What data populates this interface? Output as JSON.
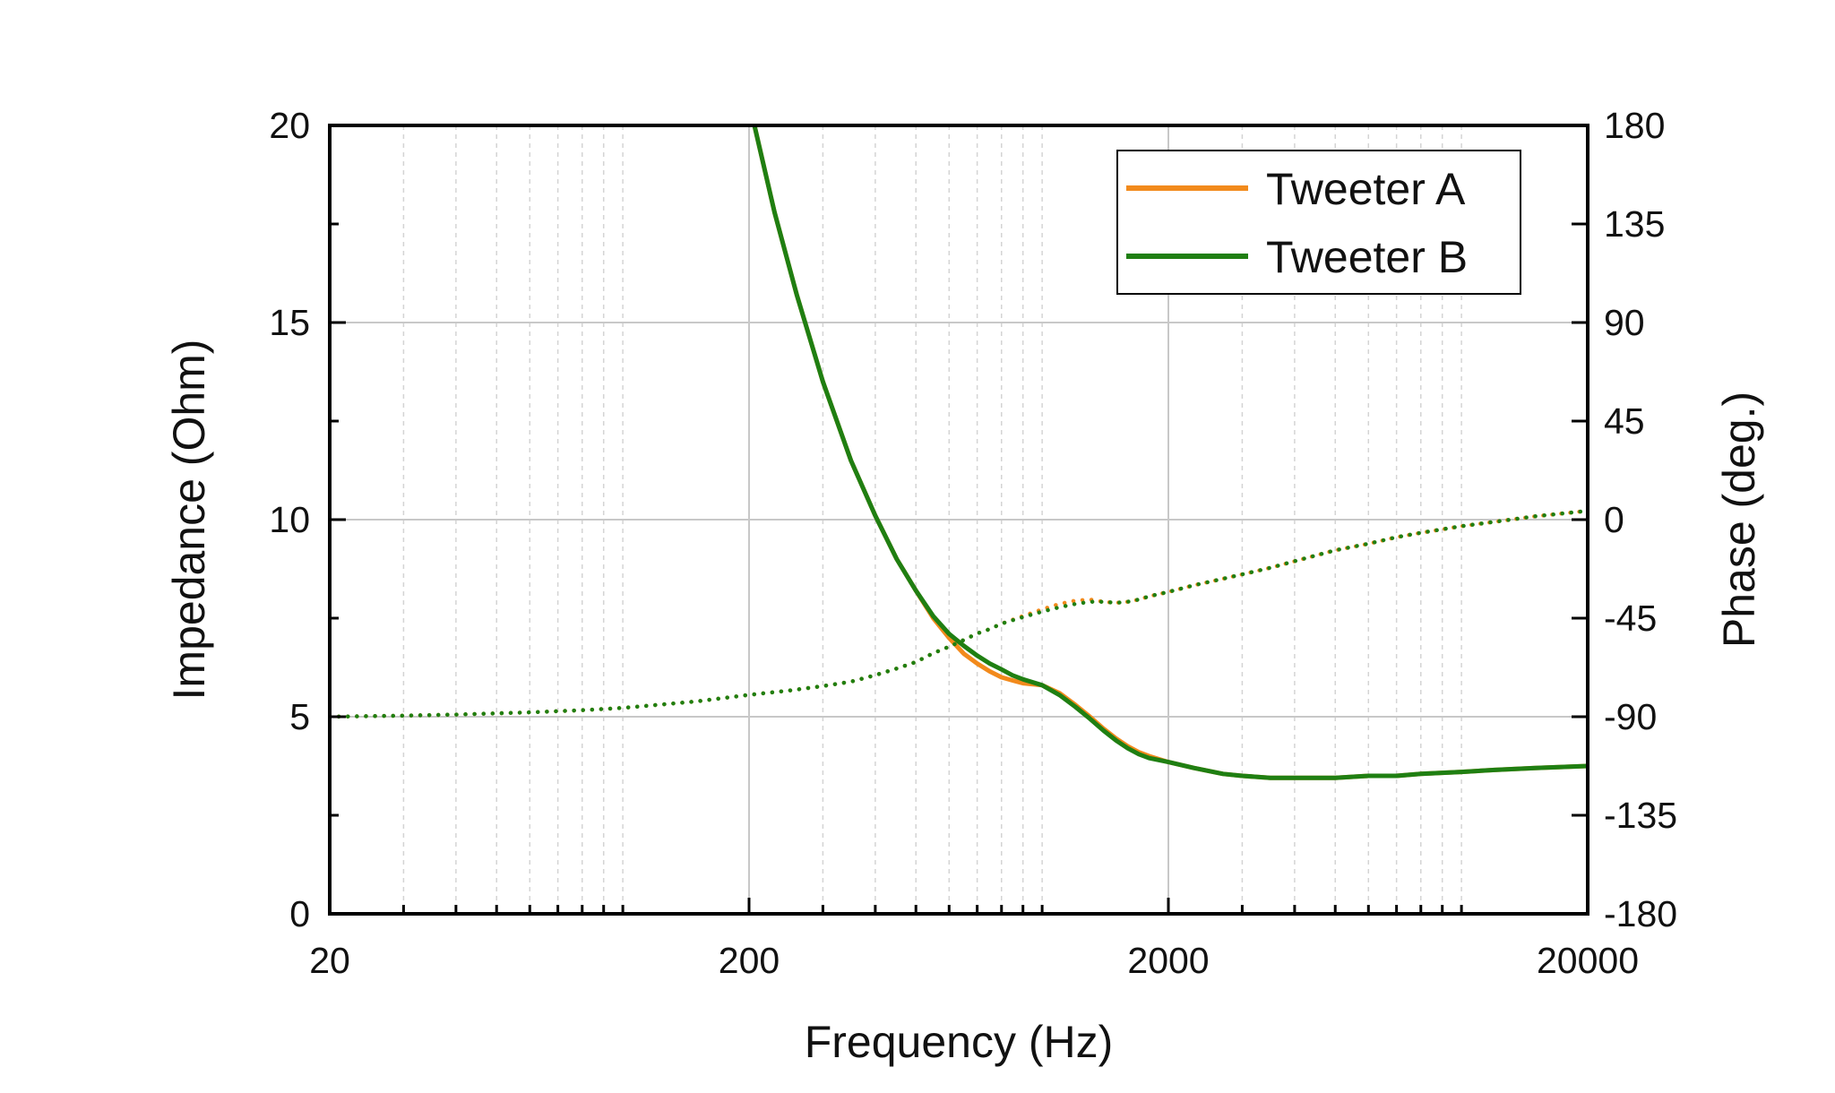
{
  "chart_data": {
    "type": "line",
    "title": "",
    "xlabel": "Frequency (Hz)",
    "ylabel_left": "Impedance (Ohm)",
    "ylabel_right": "Phase (deg.)",
    "xscale": "log",
    "xlim": [
      20,
      20000
    ],
    "ylim_left": [
      0,
      20
    ],
    "ylim_right": [
      -180,
      180
    ],
    "x_ticks": [
      "20",
      "200",
      "2000",
      "20000"
    ],
    "y_left_ticks": [
      "0",
      "5",
      "10",
      "15",
      "20"
    ],
    "y_right_ticks": [
      "-180",
      "-135",
      "-90",
      "-45",
      "0",
      "45",
      "90",
      "135",
      "180"
    ],
    "grid": true,
    "legend_position": "top-right",
    "colors": {
      "tweeter_a": "#f28a1c",
      "tweeter_b": "#1f7f12"
    },
    "series": [
      {
        "name": "Tweeter A",
        "axis": "left",
        "style": "solid",
        "x": [
          206,
          230,
          260,
          300,
          350,
          400,
          450,
          500,
          550,
          600,
          650,
          700,
          750,
          800,
          850,
          900,
          1000,
          1100,
          1200,
          1300,
          1400,
          1500,
          1600,
          1700,
          1800,
          2000,
          2300,
          2700,
          3000,
          3500,
          4000,
          5000,
          6000,
          7000,
          8000,
          10000,
          12000,
          15000,
          20000
        ],
        "values": [
          20.0,
          17.8,
          15.7,
          13.5,
          11.5,
          10.1,
          9.0,
          8.2,
          7.5,
          7.0,
          6.6,
          6.35,
          6.15,
          6.0,
          5.92,
          5.85,
          5.8,
          5.6,
          5.3,
          5.0,
          4.7,
          4.45,
          4.25,
          4.1,
          4.0,
          3.85,
          3.7,
          3.55,
          3.5,
          3.45,
          3.45,
          3.45,
          3.5,
          3.5,
          3.55,
          3.6,
          3.65,
          3.7,
          3.75
        ]
      },
      {
        "name": "Tweeter B",
        "axis": "left",
        "style": "solid",
        "x": [
          206,
          230,
          260,
          300,
          350,
          400,
          450,
          500,
          550,
          600,
          650,
          700,
          750,
          800,
          850,
          900,
          1000,
          1100,
          1200,
          1300,
          1400,
          1500,
          1600,
          1700,
          1800,
          2000,
          2300,
          2700,
          3000,
          3500,
          4000,
          5000,
          6000,
          7000,
          8000,
          10000,
          12000,
          15000,
          20000
        ],
        "values": [
          20.0,
          17.8,
          15.7,
          13.5,
          11.5,
          10.1,
          9.0,
          8.2,
          7.55,
          7.1,
          6.8,
          6.55,
          6.35,
          6.2,
          6.05,
          5.95,
          5.8,
          5.55,
          5.25,
          4.95,
          4.65,
          4.4,
          4.2,
          4.05,
          3.95,
          3.85,
          3.7,
          3.55,
          3.5,
          3.45,
          3.45,
          3.45,
          3.5,
          3.5,
          3.55,
          3.6,
          3.65,
          3.7,
          3.75
        ]
      },
      {
        "name": "Tweeter A phase",
        "axis": "right",
        "style": "dotted",
        "x": [
          20,
          30,
          40,
          60,
          80,
          100,
          150,
          200,
          250,
          300,
          350,
          400,
          450,
          500,
          550,
          600,
          650,
          700,
          750,
          800,
          900,
          1000,
          1100,
          1200,
          1300,
          1400,
          1500,
          1600,
          1700,
          1800,
          2000,
          2300,
          2700,
          3000,
          3500,
          4000,
          5000,
          6000,
          7000,
          8000,
          10000,
          12000,
          15000,
          20000
        ],
        "values": [
          -90,
          -89.5,
          -89,
          -88,
          -87,
          -86,
          -83,
          -80,
          -78,
          -76,
          -74,
          -71,
          -68,
          -65,
          -61,
          -58,
          -55,
          -52,
          -50,
          -47.5,
          -44,
          -41,
          -38.5,
          -37,
          -36.5,
          -37.5,
          -38,
          -37.5,
          -36.5,
          -35,
          -33,
          -30,
          -27,
          -25,
          -22,
          -19,
          -14,
          -11,
          -8,
          -6,
          -3,
          -1,
          1.5,
          4
        ]
      },
      {
        "name": "Tweeter B phase",
        "axis": "right",
        "style": "dotted",
        "x": [
          20,
          30,
          40,
          60,
          80,
          100,
          150,
          200,
          250,
          300,
          350,
          400,
          450,
          500,
          550,
          600,
          650,
          700,
          750,
          800,
          900,
          1000,
          1100,
          1200,
          1300,
          1400,
          1500,
          1600,
          1700,
          1800,
          2000,
          2300,
          2700,
          3000,
          3500,
          4000,
          5000,
          6000,
          7000,
          8000,
          10000,
          12000,
          15000,
          20000
        ],
        "values": [
          -90,
          -89.5,
          -89,
          -88,
          -87,
          -86,
          -83,
          -80,
          -78,
          -76,
          -74,
          -71,
          -68,
          -65,
          -61,
          -58,
          -55,
          -52,
          -50,
          -47.5,
          -44.5,
          -42,
          -40,
          -38.5,
          -37.5,
          -37.5,
          -38,
          -37.5,
          -36.5,
          -35,
          -33,
          -30,
          -27,
          -25,
          -22,
          -19,
          -14,
          -11,
          -8,
          -6,
          -3,
          -1,
          1.5,
          4
        ]
      }
    ],
    "legend": [
      {
        "label": "Tweeter A",
        "color": "#f28a1c"
      },
      {
        "label": "Tweeter B",
        "color": "#1f7f12"
      }
    ]
  }
}
